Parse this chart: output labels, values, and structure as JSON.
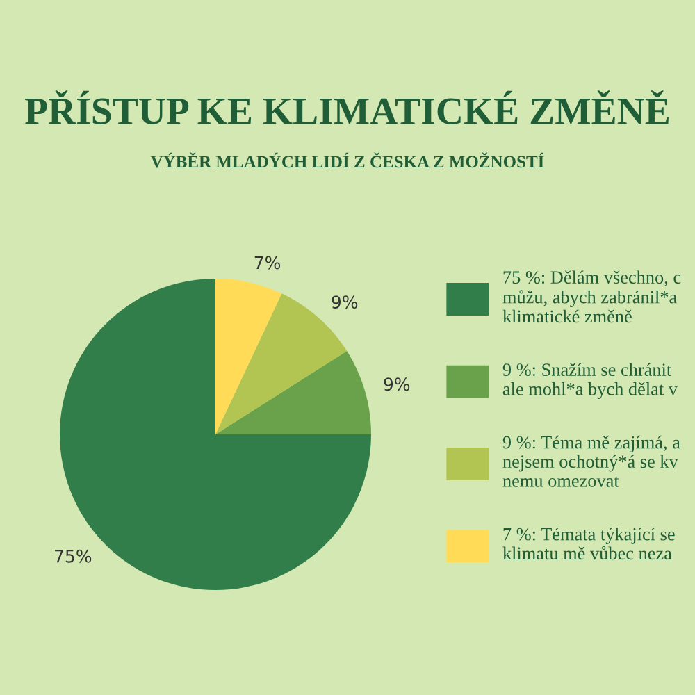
{
  "chart_data": {
    "type": "pie",
    "title": "PŘÍSTUP KE KLIMATICKÉ ZMĚNĚ",
    "subtitle": "VÝBĚR MLADÝCH LIDÍ Z ČESKA Z MOŽNOSTÍ",
    "categories": [
      "75 %: Dělám všechno, c\nmůžu, abych zabránil*a\nklimatické změně",
      "9 %: Snažím se chránit\nale mohl*a bych dělat v",
      "9 %: Téma mě zajímá, a\nnejsem ochotný*á se kv\nnemu omezovat",
      "7 %: Témata týkající se\nklimatu mě vůbec neza"
    ],
    "values": [
      75,
      9,
      9,
      7
    ],
    "colors": [
      "#327e4a",
      "#6aa24c",
      "#b2c452",
      "#ffdb58"
    ],
    "value_labels": [
      "75%",
      "9%",
      "9%",
      "7%"
    ],
    "legend": "right"
  }
}
